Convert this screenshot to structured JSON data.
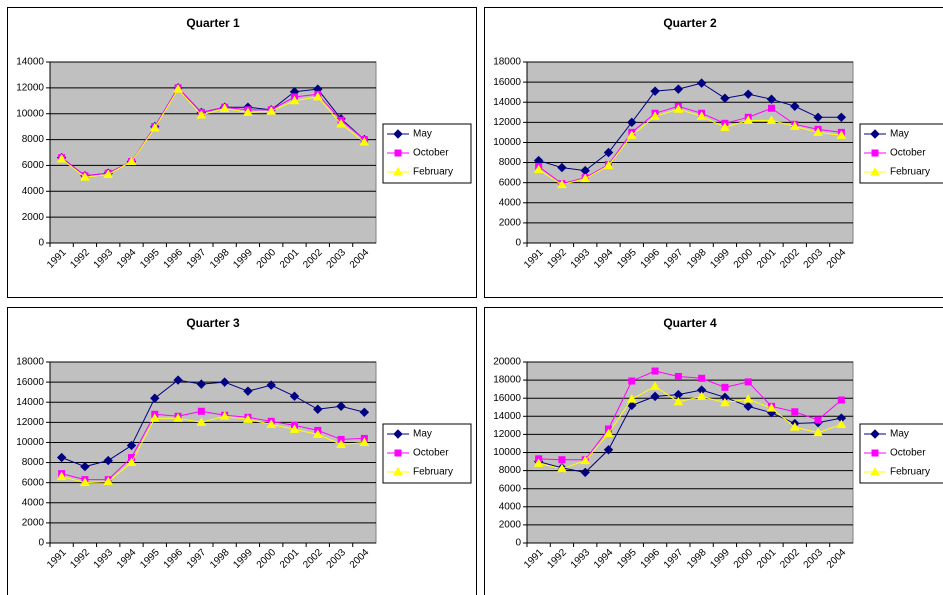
{
  "chart_data": [
    {
      "type": "line",
      "title": "Quarter 1",
      "legend": "right",
      "grid": true,
      "categories": [
        "1991",
        "1992",
        "1993",
        "1994",
        "1995",
        "1996",
        "1997",
        "1998",
        "1999",
        "2000",
        "2001",
        "2002",
        "2003",
        "2004"
      ],
      "ylim": [
        0,
        14000
      ],
      "yticks": [
        0,
        2000,
        4000,
        6000,
        8000,
        10000,
        12000,
        14000
      ],
      "series": [
        {
          "name": "May",
          "color": "#000080",
          "marker": "diamond",
          "values": [
            6600,
            5200,
            5400,
            6300,
            9000,
            12000,
            10100,
            10500,
            10500,
            10300,
            11700,
            11900,
            9600,
            8000
          ]
        },
        {
          "name": "October",
          "color": "#ff00ff",
          "marker": "square",
          "values": [
            6600,
            5200,
            5400,
            6300,
            9000,
            12000,
            10100,
            10500,
            10300,
            10300,
            11300,
            11500,
            9500,
            8000
          ]
        },
        {
          "name": "February",
          "color": "#ffff00",
          "marker": "triangle",
          "values": [
            6500,
            5100,
            5300,
            6300,
            8900,
            11900,
            9900,
            10400,
            10100,
            10200,
            11000,
            11300,
            9200,
            7800
          ]
        }
      ]
    },
    {
      "type": "line",
      "title": "Quarter 2",
      "legend": "right",
      "grid": true,
      "categories": [
        "1991",
        "1992",
        "1993",
        "1994",
        "1995",
        "1996",
        "1997",
        "1998",
        "1999",
        "2000",
        "2001",
        "2002",
        "2003",
        "2004"
      ],
      "ylim": [
        0,
        18000
      ],
      "yticks": [
        0,
        2000,
        4000,
        6000,
        8000,
        10000,
        12000,
        14000,
        16000,
        18000
      ],
      "series": [
        {
          "name": "May",
          "color": "#000080",
          "marker": "diamond",
          "values": [
            8200,
            7500,
            7200,
            9000,
            12000,
            15100,
            15300,
            15900,
            14400,
            14800,
            14300,
            13600,
            12500,
            12500
          ]
        },
        {
          "name": "October",
          "color": "#ff00ff",
          "marker": "square",
          "values": [
            7600,
            5900,
            6500,
            7800,
            11000,
            12900,
            13600,
            12900,
            11900,
            12500,
            13400,
            11800,
            11300,
            11000
          ]
        },
        {
          "name": "February",
          "color": "#ffff00",
          "marker": "triangle",
          "values": [
            7300,
            5800,
            6400,
            7700,
            10700,
            12600,
            13300,
            12600,
            11500,
            12200,
            12200,
            11600,
            11000,
            10700
          ]
        }
      ]
    },
    {
      "type": "line",
      "title": "Quarter 3",
      "legend": "right",
      "grid": true,
      "categories": [
        "1991",
        "1992",
        "1993",
        "1994",
        "1995",
        "1996",
        "1997",
        "1998",
        "1999",
        "2000",
        "2001",
        "2002",
        "2003",
        "2004"
      ],
      "ylim": [
        0,
        18000
      ],
      "yticks": [
        0,
        2000,
        4000,
        6000,
        8000,
        10000,
        12000,
        14000,
        16000,
        18000
      ],
      "series": [
        {
          "name": "May",
          "color": "#000080",
          "marker": "diamond",
          "values": [
            8500,
            7600,
            8200,
            9700,
            14400,
            16200,
            15800,
            16000,
            15100,
            15700,
            14600,
            13300,
            13600,
            13000
          ]
        },
        {
          "name": "October",
          "color": "#ff00ff",
          "marker": "square",
          "values": [
            6900,
            6300,
            6300,
            8500,
            12800,
            12600,
            13100,
            12700,
            12500,
            12100,
            11700,
            11200,
            10300,
            10400
          ]
        },
        {
          "name": "February",
          "color": "#ffff00",
          "marker": "triangle",
          "values": [
            6600,
            6000,
            6100,
            8000,
            12400,
            12400,
            12000,
            12600,
            12300,
            11800,
            11300,
            10800,
            9800,
            10000
          ]
        }
      ]
    },
    {
      "type": "line",
      "title": "Quarter 4",
      "legend": "right",
      "grid": true,
      "categories": [
        "1991",
        "1992",
        "1993",
        "1994",
        "1995",
        "1996",
        "1997",
        "1998",
        "1999",
        "2000",
        "2001",
        "2002",
        "2003",
        "2004"
      ],
      "ylim": [
        0,
        20000
      ],
      "yticks": [
        0,
        2000,
        4000,
        6000,
        8000,
        10000,
        12000,
        14000,
        16000,
        18000,
        20000
      ],
      "series": [
        {
          "name": "May",
          "color": "#000080",
          "marker": "diamond",
          "values": [
            9000,
            8300,
            7800,
            10300,
            15200,
            16200,
            16400,
            16900,
            16100,
            15100,
            14400,
            13200,
            13300,
            13800
          ]
        },
        {
          "name": "October",
          "color": "#ff00ff",
          "marker": "square",
          "values": [
            9300,
            9200,
            9200,
            12600,
            17900,
            19000,
            18400,
            18200,
            17200,
            17800,
            15100,
            14500,
            13600,
            15800
          ]
        },
        {
          "name": "February",
          "color": "#ffff00",
          "marker": "triangle",
          "values": [
            8800,
            8200,
            9100,
            12100,
            15900,
            17300,
            15600,
            16200,
            15500,
            15900,
            14900,
            12800,
            12200,
            13100
          ]
        }
      ]
    }
  ]
}
